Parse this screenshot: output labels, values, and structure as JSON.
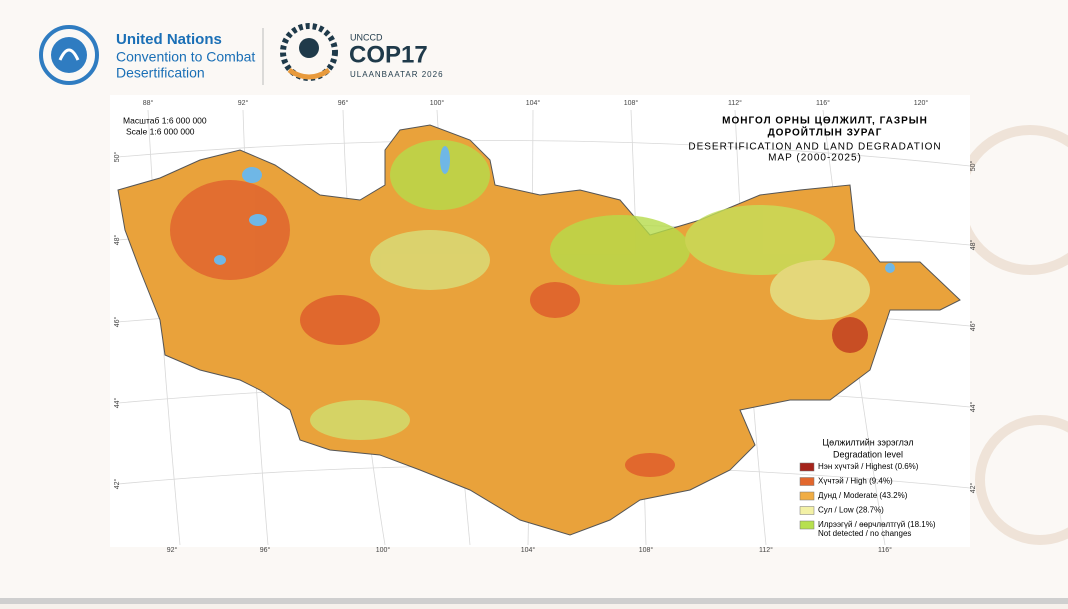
{
  "header": {
    "un": {
      "title": "United Nations",
      "line2": "Convention to Combat",
      "line3": "Desertification"
    },
    "cop": {
      "org": "UNCCD",
      "title": "COP17",
      "place": "ULAANBAATAR 2026"
    }
  },
  "map": {
    "scale_mn": "Масштаб 1:6 000 000",
    "scale_en": "Scale 1:6 000 000",
    "title_mn": [
      "МОНГОЛ ОРНЫ ЦӨЛЖИЛТ, ГАЗРЫН",
      "ДОРОЙТЛЫН ЗУРАГ"
    ],
    "title_en": [
      "DESERTIFICATION AND LAND  DEGRADATION",
      "MAP (2000-2025)"
    ],
    "graticule": {
      "top": [
        "88°",
        "92°",
        "96°",
        "100°",
        "104°",
        "108°",
        "112°",
        "116°",
        "120°"
      ],
      "bottom": [
        "92°",
        "96°",
        "100°",
        "104°",
        "108°",
        "112°",
        "116°"
      ],
      "left": [
        "50°",
        "48°",
        "46°",
        "44°",
        "42°"
      ],
      "right": [
        "50°",
        "48°",
        "46°",
        "44°",
        "42°"
      ]
    },
    "legend": {
      "title_mn": "Цөлжилтийн зэрэглэл",
      "title_en": "Degradation level",
      "items": [
        "Нэн хүчтэй / Highest (0.6%)",
        "Хүчтэй / High (9.4%)",
        "Дунд / Moderate (43.2%)",
        "Сул / Low (28.7%)",
        "Илрээгүй / өөрчлөлтгүй (18.1%)"
      ],
      "note": "Not detected / no changes"
    }
  }
}
